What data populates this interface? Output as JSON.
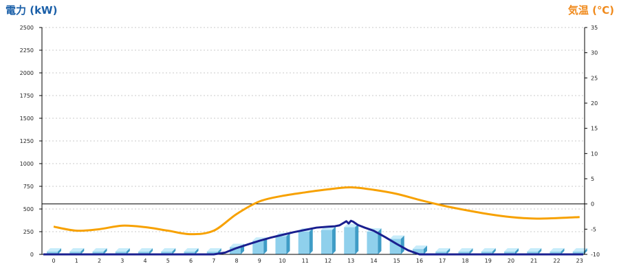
{
  "colors": {
    "left_title": "#1a5fa8",
    "right_title": "#f08a1c",
    "bar_face": "#8fd0ec",
    "bar_side": "#3f9cc6",
    "bar_top": "#c7ecfa",
    "power_line": "#1a1f8f",
    "temp_line": "#f7a100",
    "grid": "#c8c8c8",
    "axis": "#000000"
  },
  "chart_data": {
    "type": "bar",
    "left_axis_title": "電力 (kW)",
    "right_axis_title": "気温 (℃)",
    "left_axis": {
      "min": 0,
      "max": 2500,
      "ticks": [
        0,
        250,
        500,
        750,
        1000,
        1250,
        1500,
        1750,
        2000,
        2250,
        2500
      ]
    },
    "right_axis": {
      "min": -10,
      "max": 35,
      "ticks": [
        -10,
        -5,
        0,
        5,
        10,
        15,
        20,
        25,
        30,
        35
      ]
    },
    "categories": [
      "0",
      "1",
      "2",
      "3",
      "4",
      "5",
      "6",
      "7",
      "8",
      "9",
      "10",
      "11",
      "12",
      "13",
      "14",
      "15",
      "16",
      "17",
      "18",
      "19",
      "20",
      "21",
      "22",
      "23"
    ],
    "bars": [
      30,
      30,
      30,
      30,
      30,
      30,
      30,
      30,
      80,
      150,
      200,
      250,
      270,
      300,
      250,
      170,
      60,
      30,
      30,
      30,
      30,
      30,
      30,
      30
    ],
    "power_line": {
      "x": [
        7,
        7.5,
        8,
        8.5,
        9,
        9.5,
        10,
        10.5,
        11,
        11.5,
        12,
        12.3,
        12.5,
        12.8,
        12.9,
        13.0,
        13.1,
        13.3,
        13.6,
        14,
        14.5,
        15,
        15.5,
        16
      ],
      "y": [
        0,
        20,
        70,
        110,
        150,
        185,
        215,
        245,
        270,
        295,
        305,
        310,
        320,
        365,
        340,
        370,
        360,
        325,
        295,
        260,
        190,
        115,
        45,
        0
      ]
    },
    "temp_line": {
      "x": [
        0,
        1,
        2,
        3,
        4,
        5,
        6,
        7,
        8,
        9,
        10,
        11,
        12,
        13,
        14,
        15,
        16,
        17,
        18,
        19,
        20,
        21,
        22,
        23
      ],
      "y": [
        -4.5,
        -5.3,
        -5.0,
        -4.3,
        -4.6,
        -5.3,
        -6.0,
        -5.3,
        -2.0,
        0.5,
        1.6,
        2.3,
        2.9,
        3.3,
        2.8,
        2.0,
        0.8,
        -0.3,
        -1.2,
        -2.0,
        -2.6,
        -2.9,
        -2.8,
        -2.6
      ]
    },
    "reference_line": {
      "value": 0,
      "axis": "right"
    },
    "grid": true
  }
}
